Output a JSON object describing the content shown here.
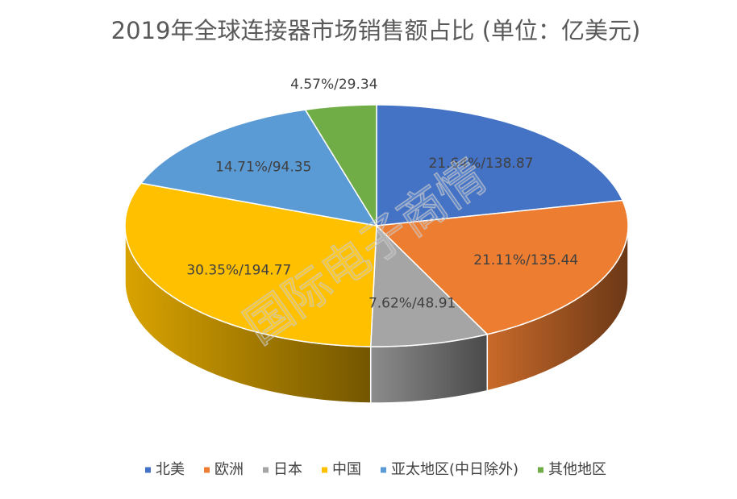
{
  "chart_data": {
    "type": "pie",
    "title": "2019年全球连接器市场销售额占比 (单位：亿美元)",
    "categories": [
      "北美",
      "欧洲",
      "日本",
      "中国",
      "亚太地区(中日除外)",
      "其他地区"
    ],
    "values": [
      138.87,
      135.44,
      48.91,
      194.77,
      94.35,
      29.34
    ],
    "value_labels": [
      "21.64%/138.87",
      "21.11%/135.44",
      "7.62%/48.91",
      "30.35%/194.77",
      "14.71%/94.35",
      "4.57%/29.34"
    ],
    "colors": [
      "#4472c4",
      "#ed7d31",
      "#a5a5a5",
      "#ffc000",
      "#5b9bd5",
      "#70ad47"
    ],
    "legend": "bottom",
    "watermark": "国际电子商情"
  }
}
